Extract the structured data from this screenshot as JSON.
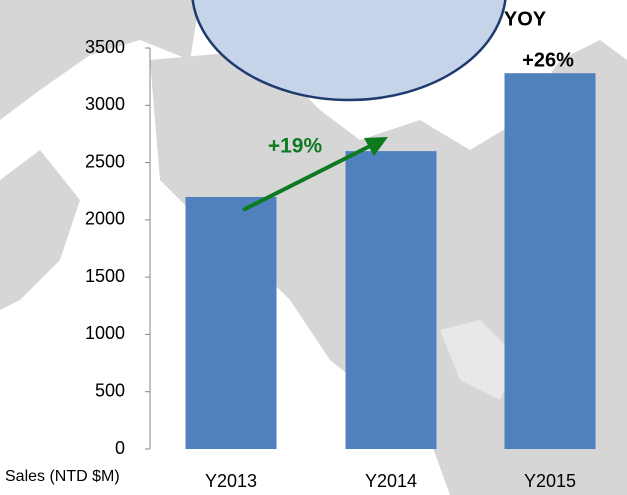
{
  "chart_data": {
    "type": "bar",
    "categories": [
      "Y2013",
      "Y2014",
      "Y2015"
    ],
    "values": [
      2200,
      2600,
      3280
    ],
    "color": "#4f81bd",
    "ylim": [
      0,
      3500
    ],
    "yticks": [
      0,
      500,
      1000,
      1500,
      2000,
      2500,
      3000,
      3500
    ],
    "ylabel": "Sales (NTD $M)",
    "annotations": {
      "growth": "+19%",
      "yoy": "YOY",
      "yoy_value": "+26%"
    }
  }
}
